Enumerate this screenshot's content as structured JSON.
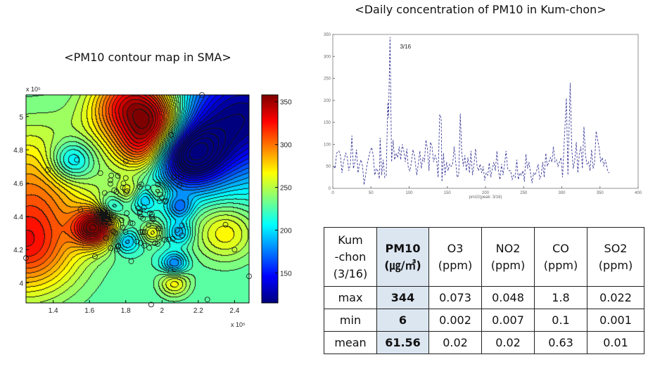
{
  "chart_data": [
    {
      "type": "heatmap",
      "subtype": "filled-contour",
      "title": "<PM10 contour map in SMA>",
      "x_multiplier": "x 10^5",
      "y_multiplier": "x 10^5",
      "xlim": [
        1.25,
        2.48
      ],
      "ylim": [
        3.88,
        5.13
      ],
      "x_ticks": [
        "1.4",
        "1.6",
        "1.8",
        "2",
        "2.2",
        "2.4"
      ],
      "y_ticks": [
        "4",
        "4.2",
        "4.4",
        "4.6",
        "4.8",
        "5"
      ],
      "colorbar": {
        "colormap": "jet",
        "range": [
          115,
          358
        ],
        "ticks": [
          "150",
          "200",
          "250",
          "300",
          "350"
        ]
      },
      "station_marker": "open-circle"
    },
    {
      "type": "line",
      "title": "<Daily concentration of PM10 in Kum-chon>",
      "xlabel": "pm10(peak: 3/16)",
      "xlim": [
        0,
        400
      ],
      "ylim": [
        0,
        350
      ],
      "x_ticks": [
        "0",
        "50",
        "100",
        "150",
        "200",
        "250",
        "300",
        "350",
        "400"
      ],
      "y_ticks": [
        "0",
        "50",
        "100",
        "150",
        "200",
        "250",
        "300",
        "350"
      ],
      "line_style": "dashed",
      "color": "#3b3b9a",
      "annotation": "3/16",
      "x": [
        1,
        3,
        5,
        8,
        10,
        12,
        14,
        17,
        19,
        21,
        23,
        25,
        27,
        29,
        31,
        33,
        35,
        37,
        39,
        41,
        43,
        45,
        47,
        49,
        51,
        53,
        55,
        57,
        59,
        61,
        62,
        64,
        66,
        68,
        70,
        72,
        73,
        75,
        76,
        77,
        79,
        81,
        83,
        85,
        87,
        89,
        91,
        93,
        95,
        97,
        99,
        101,
        103,
        105,
        107,
        110,
        112,
        114,
        116,
        118,
        120,
        122,
        124,
        126,
        128,
        130,
        132,
        134,
        136,
        138,
        140,
        142,
        143,
        145,
        147,
        149,
        151,
        153,
        155,
        157,
        159,
        161,
        163,
        165,
        167,
        169,
        171,
        173,
        175,
        177,
        179,
        181,
        183,
        185,
        187,
        189,
        191,
        193,
        195,
        197,
        199,
        201,
        203,
        205,
        207,
        209,
        211,
        213,
        215,
        217,
        219,
        221,
        223,
        225,
        227,
        229,
        231,
        233,
        235,
        237,
        239,
        241,
        243,
        245,
        247,
        249,
        251,
        253,
        255,
        257,
        259,
        261,
        263,
        265,
        267,
        269,
        271,
        273,
        275,
        277,
        279,
        281,
        283,
        285,
        287,
        289,
        291,
        293,
        295,
        297,
        299,
        301,
        303,
        306,
        308,
        311,
        313,
        315,
        317,
        319,
        321,
        323,
        325,
        327,
        329,
        331,
        333,
        335,
        337,
        339,
        341,
        343,
        345,
        347,
        349,
        351,
        353,
        355,
        357,
        360,
        362
      ],
      "y": [
        50,
        45,
        80,
        85,
        75,
        35,
        60,
        80,
        70,
        40,
        55,
        120,
        45,
        60,
        88,
        35,
        55,
        65,
        50,
        8,
        30,
        55,
        70,
        85,
        93,
        75,
        30,
        45,
        40,
        22,
        115,
        30,
        65,
        25,
        30,
        195,
        160,
        344,
        200,
        60,
        110,
        65,
        80,
        70,
        95,
        65,
        100,
        85,
        60,
        90,
        45,
        40,
        60,
        88,
        75,
        30,
        55,
        85,
        45,
        70,
        60,
        110,
        90,
        40,
        105,
        95,
        60,
        75,
        65,
        25,
        168,
        160,
        15,
        80,
        30,
        60,
        40,
        55,
        50,
        55,
        95,
        60,
        25,
        30,
        170,
        80,
        50,
        75,
        40,
        70,
        35,
        85,
        30,
        55,
        90,
        50,
        40,
        55,
        35,
        50,
        18,
        35,
        30,
        58,
        25,
        45,
        60,
        40,
        85,
        40,
        20,
        55,
        30,
        55,
        85,
        45,
        40,
        40,
        20,
        30,
        25,
        65,
        20,
        35,
        30,
        40,
        15,
        78,
        45,
        60,
        35,
        12,
        35,
        30,
        40,
        55,
        20,
        30,
        60,
        25,
        80,
        50,
        60,
        70,
        60,
        95,
        60,
        65,
        50,
        60,
        70,
        25,
        100,
        205,
        30,
        240,
        90,
        45,
        65,
        105,
        35,
        80,
        95,
        45,
        140,
        75,
        55,
        60,
        40,
        88,
        45,
        60,
        130,
        110,
        90,
        60,
        70,
        50,
        65,
        40,
        35
      ]
    }
  ],
  "table": {
    "header": [
      "Kum\n-chon\n(3/16)",
      "PM10\n(㎍/㎥)",
      "O3\n(ppm)",
      "NO2\n(ppm)",
      "CO\n(ppm)",
      "SO2\n(ppm)"
    ],
    "rows": [
      [
        "max",
        "344",
        "0.073",
        "0.048",
        "1.8",
        "0.022"
      ],
      [
        "min",
        "6",
        "0.002",
        "0.007",
        "0.1",
        "0.001"
      ],
      [
        "mean",
        "61.56",
        "0.02",
        "0.02",
        "0.63",
        "0.01"
      ]
    ],
    "highlight_color": "#dce6f1"
  }
}
